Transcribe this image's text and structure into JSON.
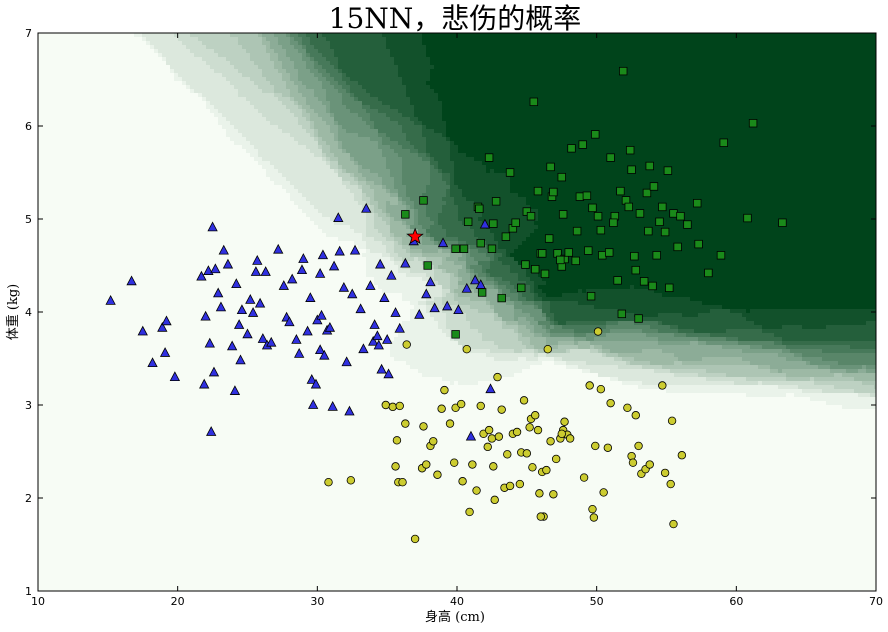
{
  "chart_data": {
    "type": "scatter",
    "title": "15NN，悲伤的概率",
    "xlabel": "身高 (cm)",
    "ylabel": "体重 (kg)",
    "xlim": [
      10,
      70
    ],
    "ylim": [
      1,
      7
    ],
    "xticks": [
      10,
      20,
      30,
      40,
      50,
      60,
      70
    ],
    "yticks": [
      1,
      2,
      3,
      4,
      5,
      6,
      7
    ],
    "grid": false,
    "background": "probability heatmap, white (0) to dark green (1)",
    "colors": {
      "triangles": "#3030e0",
      "circles": "#cccc30",
      "squares": "#1a8a1a",
      "star": "#ff0000",
      "heat_low": "#f7fcf5",
      "heat_high": "#00441b"
    },
    "series": [
      {
        "marker": "triangle",
        "points": [
          [
            15.2,
            4.12
          ],
          [
            16.7,
            4.33
          ],
          [
            17.5,
            3.79
          ],
          [
            18.2,
            3.45
          ],
          [
            18.9,
            3.83
          ],
          [
            19.1,
            3.56
          ],
          [
            19.2,
            3.9
          ],
          [
            19.8,
            3.3
          ],
          [
            21.7,
            4.38
          ],
          [
            21.9,
            3.22
          ],
          [
            22.0,
            3.95
          ],
          [
            22.2,
            4.44
          ],
          [
            22.3,
            3.66
          ],
          [
            22.4,
            2.71
          ],
          [
            22.5,
            4.91
          ],
          [
            22.6,
            3.35
          ],
          [
            22.7,
            4.46
          ],
          [
            22.9,
            4.2
          ],
          [
            23.1,
            4.05
          ],
          [
            23.3,
            4.66
          ],
          [
            23.6,
            4.51
          ],
          [
            23.9,
            3.63
          ],
          [
            24.1,
            3.15
          ],
          [
            24.2,
            4.3
          ],
          [
            24.4,
            3.86
          ],
          [
            24.5,
            3.48
          ],
          [
            24.6,
            4.02
          ],
          [
            25.0,
            3.76
          ],
          [
            25.2,
            4.13
          ],
          [
            25.4,
            3.99
          ],
          [
            25.6,
            4.43
          ],
          [
            25.7,
            4.55
          ],
          [
            25.9,
            4.09
          ],
          [
            26.1,
            3.71
          ],
          [
            26.3,
            4.43
          ],
          [
            26.4,
            3.64
          ],
          [
            26.7,
            3.67
          ],
          [
            27.2,
            4.67
          ],
          [
            27.6,
            4.28
          ],
          [
            27.8,
            3.94
          ],
          [
            28.0,
            3.89
          ],
          [
            28.2,
            4.35
          ],
          [
            28.5,
            3.7
          ],
          [
            28.7,
            3.55
          ],
          [
            28.9,
            4.45
          ],
          [
            29.0,
            4.57
          ],
          [
            29.3,
            3.79
          ],
          [
            29.5,
            4.15
          ],
          [
            29.6,
            3.27
          ],
          [
            29.7,
            3.0
          ],
          [
            29.9,
            3.22
          ],
          [
            30.0,
            3.91
          ],
          [
            30.2,
            3.59
          ],
          [
            30.2,
            4.41
          ],
          [
            30.3,
            3.96
          ],
          [
            30.4,
            4.61
          ],
          [
            30.5,
            3.53
          ],
          [
            30.7,
            3.8
          ],
          [
            30.9,
            3.83
          ],
          [
            31.1,
            2.98
          ],
          [
            31.2,
            4.49
          ],
          [
            31.5,
            5.01
          ],
          [
            31.6,
            4.65
          ],
          [
            31.9,
            4.26
          ],
          [
            32.1,
            3.46
          ],
          [
            32.3,
            2.93
          ],
          [
            32.5,
            4.19
          ],
          [
            32.7,
            4.66
          ],
          [
            33.1,
            4.03
          ],
          [
            33.3,
            3.6
          ],
          [
            33.5,
            5.11
          ],
          [
            33.8,
            4.28
          ],
          [
            34.0,
            3.68
          ],
          [
            34.1,
            3.86
          ],
          [
            34.3,
            3.74
          ],
          [
            34.4,
            3.64
          ],
          [
            34.5,
            4.51
          ],
          [
            34.6,
            3.38
          ],
          [
            34.8,
            4.15
          ],
          [
            35.0,
            3.7
          ],
          [
            35.1,
            3.33
          ],
          [
            35.3,
            4.39
          ],
          [
            35.6,
            3.99
          ],
          [
            35.9,
            3.82
          ],
          [
            36.3,
            4.52
          ],
          [
            36.9,
            4.76
          ],
          [
            37.3,
            3.97
          ],
          [
            37.8,
            4.19
          ],
          [
            38.1,
            4.32
          ],
          [
            38.4,
            4.04
          ],
          [
            39.0,
            4.74
          ],
          [
            39.3,
            4.06
          ],
          [
            40.1,
            4.02
          ],
          [
            40.7,
            4.25
          ],
          [
            41.0,
            2.66
          ],
          [
            41.3,
            4.34
          ],
          [
            41.7,
            4.29
          ],
          [
            42.0,
            4.94
          ],
          [
            42.4,
            3.17
          ]
        ]
      },
      {
        "marker": "circle",
        "points": [
          [
            30.8,
            2.17
          ],
          [
            32.4,
            2.19
          ],
          [
            34.9,
            3.0
          ],
          [
            35.4,
            2.98
          ],
          [
            35.6,
            2.34
          ],
          [
            35.7,
            2.62
          ],
          [
            35.8,
            2.17
          ],
          [
            35.9,
            2.99
          ],
          [
            36.1,
            2.17
          ],
          [
            36.3,
            2.8
          ],
          [
            36.4,
            3.65
          ],
          [
            37.0,
            1.56
          ],
          [
            37.5,
            2.32
          ],
          [
            37.6,
            2.77
          ],
          [
            37.8,
            2.36
          ],
          [
            38.1,
            2.56
          ],
          [
            38.3,
            2.61
          ],
          [
            38.6,
            2.25
          ],
          [
            38.9,
            2.96
          ],
          [
            39.1,
            3.16
          ],
          [
            39.5,
            2.8
          ],
          [
            39.8,
            2.38
          ],
          [
            39.9,
            2.97
          ],
          [
            40.3,
            3.01
          ],
          [
            40.4,
            2.18
          ],
          [
            40.7,
            3.6
          ],
          [
            40.9,
            1.85
          ],
          [
            41.1,
            2.36
          ],
          [
            41.4,
            2.08
          ],
          [
            41.7,
            2.99
          ],
          [
            41.9,
            2.69
          ],
          [
            42.2,
            2.55
          ],
          [
            42.3,
            2.73
          ],
          [
            42.5,
            2.64
          ],
          [
            42.6,
            2.34
          ],
          [
            42.7,
            1.98
          ],
          [
            42.9,
            3.3
          ],
          [
            43.0,
            2.66
          ],
          [
            43.2,
            2.95
          ],
          [
            43.4,
            2.11
          ],
          [
            43.6,
            2.47
          ],
          [
            43.8,
            2.13
          ],
          [
            44.0,
            2.69
          ],
          [
            44.3,
            2.71
          ],
          [
            44.5,
            2.15
          ],
          [
            44.6,
            2.49
          ],
          [
            44.8,
            3.05
          ],
          [
            45.0,
            2.48
          ],
          [
            45.2,
            2.76
          ],
          [
            45.3,
            2.85
          ],
          [
            45.4,
            2.33
          ],
          [
            45.6,
            2.89
          ],
          [
            45.8,
            2.73
          ],
          [
            45.9,
            2.05
          ],
          [
            46.1,
            2.28
          ],
          [
            46.2,
            1.8
          ],
          [
            46.4,
            2.3
          ],
          [
            46.5,
            3.6
          ],
          [
            46.7,
            2.61
          ],
          [
            46.9,
            2.04
          ],
          [
            47.1,
            2.42
          ],
          [
            47.4,
            2.64
          ],
          [
            47.6,
            2.73
          ],
          [
            47.7,
            2.82
          ],
          [
            47.9,
            2.68
          ],
          [
            48.1,
            2.64
          ],
          [
            49.1,
            2.22
          ],
          [
            49.5,
            3.21
          ],
          [
            49.7,
            1.88
          ],
          [
            49.8,
            1.79
          ],
          [
            49.9,
            2.56
          ],
          [
            50.1,
            3.79
          ],
          [
            50.3,
            3.17
          ],
          [
            50.5,
            2.06
          ],
          [
            50.8,
            2.54
          ],
          [
            51.0,
            3.02
          ],
          [
            52.2,
            2.97
          ],
          [
            52.5,
            2.45
          ],
          [
            52.8,
            2.89
          ],
          [
            53.0,
            2.56
          ],
          [
            53.2,
            2.26
          ],
          [
            53.5,
            2.31
          ],
          [
            53.8,
            2.36
          ],
          [
            54.7,
            3.21
          ],
          [
            54.9,
            2.27
          ],
          [
            55.3,
            2.15
          ],
          [
            55.4,
            2.83
          ],
          [
            55.5,
            1.72
          ],
          [
            56.1,
            2.46
          ],
          [
            52.6,
            2.38
          ],
          [
            46.0,
            1.8
          ],
          [
            47.5,
            2.69
          ]
        ]
      },
      {
        "marker": "square",
        "points": [
          [
            36.3,
            5.05
          ],
          [
            37.6,
            5.2
          ],
          [
            37.9,
            4.5
          ],
          [
            39.9,
            3.76
          ],
          [
            39.9,
            4.68
          ],
          [
            40.5,
            4.68
          ],
          [
            40.8,
            4.97
          ],
          [
            41.5,
            5.13
          ],
          [
            41.6,
            5.11
          ],
          [
            41.7,
            4.74
          ],
          [
            41.8,
            4.21
          ],
          [
            42.3,
            5.66
          ],
          [
            42.5,
            4.68
          ],
          [
            42.6,
            4.95
          ],
          [
            42.8,
            5.19
          ],
          [
            43.2,
            4.15
          ],
          [
            43.5,
            4.81
          ],
          [
            43.8,
            5.5
          ],
          [
            44.0,
            4.9
          ],
          [
            44.2,
            4.96
          ],
          [
            44.6,
            4.26
          ],
          [
            44.9,
            4.51
          ],
          [
            45.0,
            5.08
          ],
          [
            45.3,
            5.03
          ],
          [
            45.5,
            6.26
          ],
          [
            45.6,
            4.46
          ],
          [
            45.8,
            5.3
          ],
          [
            46.0,
            4.63
          ],
          [
            46.3,
            4.41
          ],
          [
            46.6,
            4.79
          ],
          [
            46.7,
            5.56
          ],
          [
            46.8,
            5.24
          ],
          [
            46.9,
            5.29
          ],
          [
            47.2,
            4.63
          ],
          [
            47.5,
            4.49
          ],
          [
            47.5,
            5.45
          ],
          [
            47.6,
            5.05
          ],
          [
            47.7,
            4.57
          ],
          [
            48.0,
            4.64
          ],
          [
            48.2,
            5.76
          ],
          [
            48.5,
            4.55
          ],
          [
            48.6,
            4.87
          ],
          [
            48.8,
            5.24
          ],
          [
            49.0,
            5.8
          ],
          [
            49.3,
            5.25
          ],
          [
            49.4,
            4.66
          ],
          [
            49.6,
            4.17
          ],
          [
            49.7,
            5.12
          ],
          [
            49.9,
            5.91
          ],
          [
            50.1,
            5.03
          ],
          [
            50.3,
            4.88
          ],
          [
            50.4,
            4.61
          ],
          [
            50.9,
            4.64
          ],
          [
            51.0,
            5.66
          ],
          [
            51.3,
            5.03
          ],
          [
            51.5,
            4.34
          ],
          [
            51.7,
            5.3
          ],
          [
            51.8,
            3.98
          ],
          [
            51.9,
            6.59
          ],
          [
            52.1,
            5.2
          ],
          [
            52.3,
            5.13
          ],
          [
            52.4,
            5.74
          ],
          [
            52.5,
            5.53
          ],
          [
            52.7,
            4.6
          ],
          [
            52.8,
            4.45
          ],
          [
            53.0,
            3.93
          ],
          [
            53.1,
            5.06
          ],
          [
            53.4,
            4.33
          ],
          [
            53.6,
            5.28
          ],
          [
            53.7,
            4.87
          ],
          [
            53.8,
            5.57
          ],
          [
            54.0,
            4.28
          ],
          [
            54.1,
            5.35
          ],
          [
            54.3,
            4.61
          ],
          [
            54.5,
            4.97
          ],
          [
            54.7,
            5.13
          ],
          [
            54.9,
            4.86
          ],
          [
            55.1,
            5.52
          ],
          [
            55.2,
            4.26
          ],
          [
            55.5,
            5.06
          ],
          [
            55.8,
            4.7
          ],
          [
            56.0,
            5.03
          ],
          [
            56.5,
            4.94
          ],
          [
            57.2,
            5.17
          ],
          [
            57.3,
            4.73
          ],
          [
            58.0,
            4.42
          ],
          [
            58.9,
            4.61
          ],
          [
            59.1,
            5.82
          ],
          [
            60.8,
            5.01
          ],
          [
            61.2,
            6.03
          ],
          [
            63.3,
            4.96
          ],
          [
            46.1,
            4.63
          ],
          [
            47.4,
            4.56
          ],
          [
            51.2,
            4.96
          ]
        ]
      },
      {
        "marker": "star",
        "points": [
          [
            37.0,
            4.81
          ]
        ]
      }
    ]
  }
}
